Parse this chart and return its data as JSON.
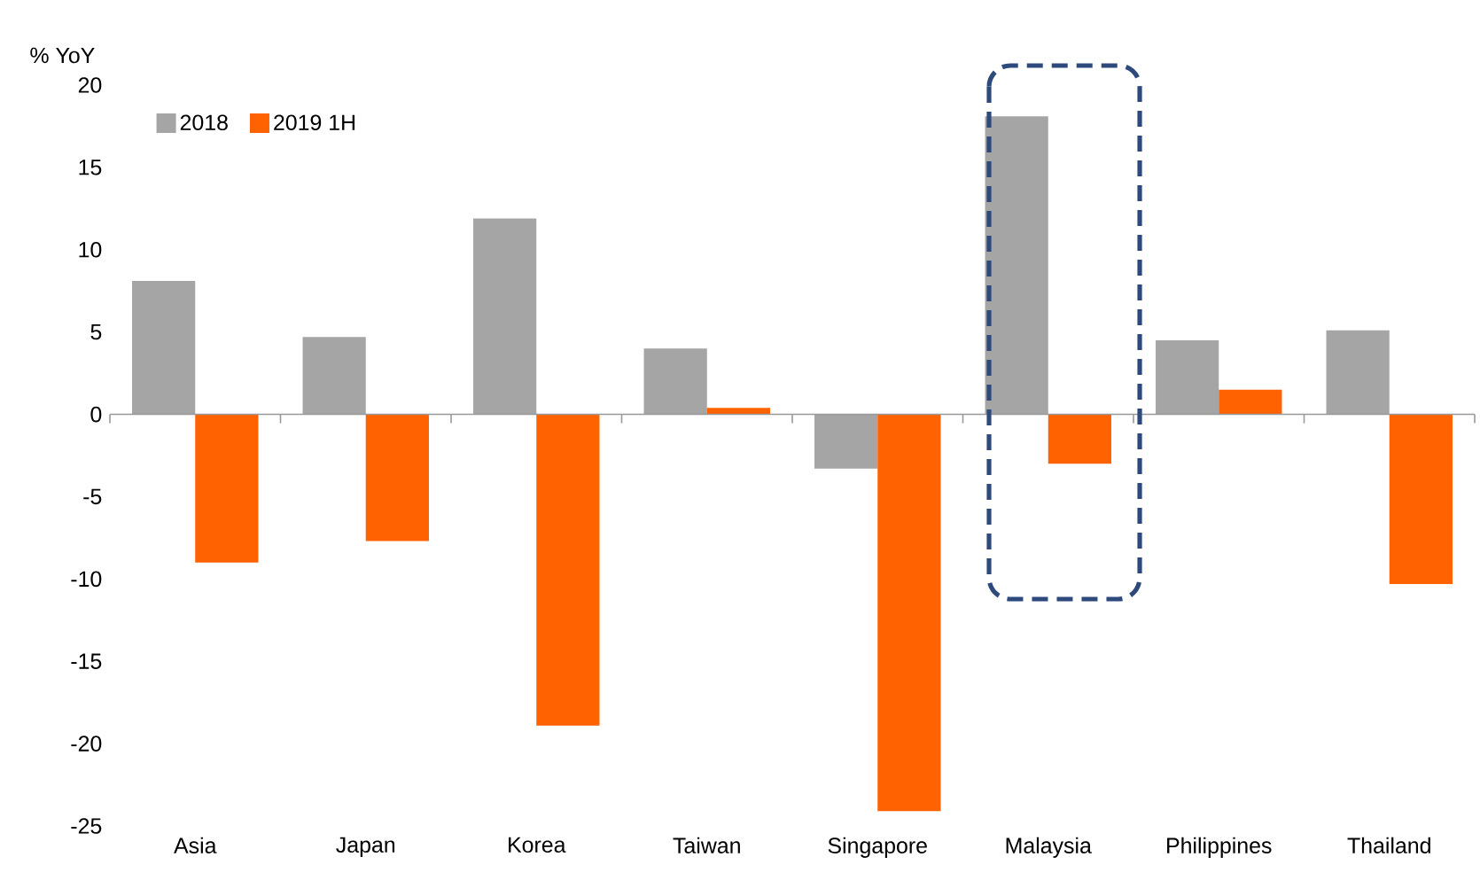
{
  "chart_data": {
    "type": "bar",
    "ylabel": "% YoY",
    "categories": [
      "Asia",
      "Japan",
      "Korea",
      "Taiwan",
      "Singapore",
      "Malaysia",
      "Philippines",
      "Thailand"
    ],
    "series": [
      {
        "name": "2018",
        "color": "#a5a5a5",
        "values": [
          8.1,
          4.7,
          11.9,
          4.0,
          -3.3,
          18.1,
          4.5,
          5.1
        ]
      },
      {
        "name": "2019 1H",
        "color": "#ff6200",
        "values": [
          -9.0,
          -7.7,
          -18.9,
          0.4,
          -24.1,
          -3.0,
          1.5,
          -10.3
        ]
      }
    ],
    "ylim": [
      -25,
      20
    ],
    "yticks": [
      -25,
      -20,
      -15,
      -10,
      -5,
      0,
      5,
      10,
      15,
      20
    ],
    "legend": "top left"
  }
}
